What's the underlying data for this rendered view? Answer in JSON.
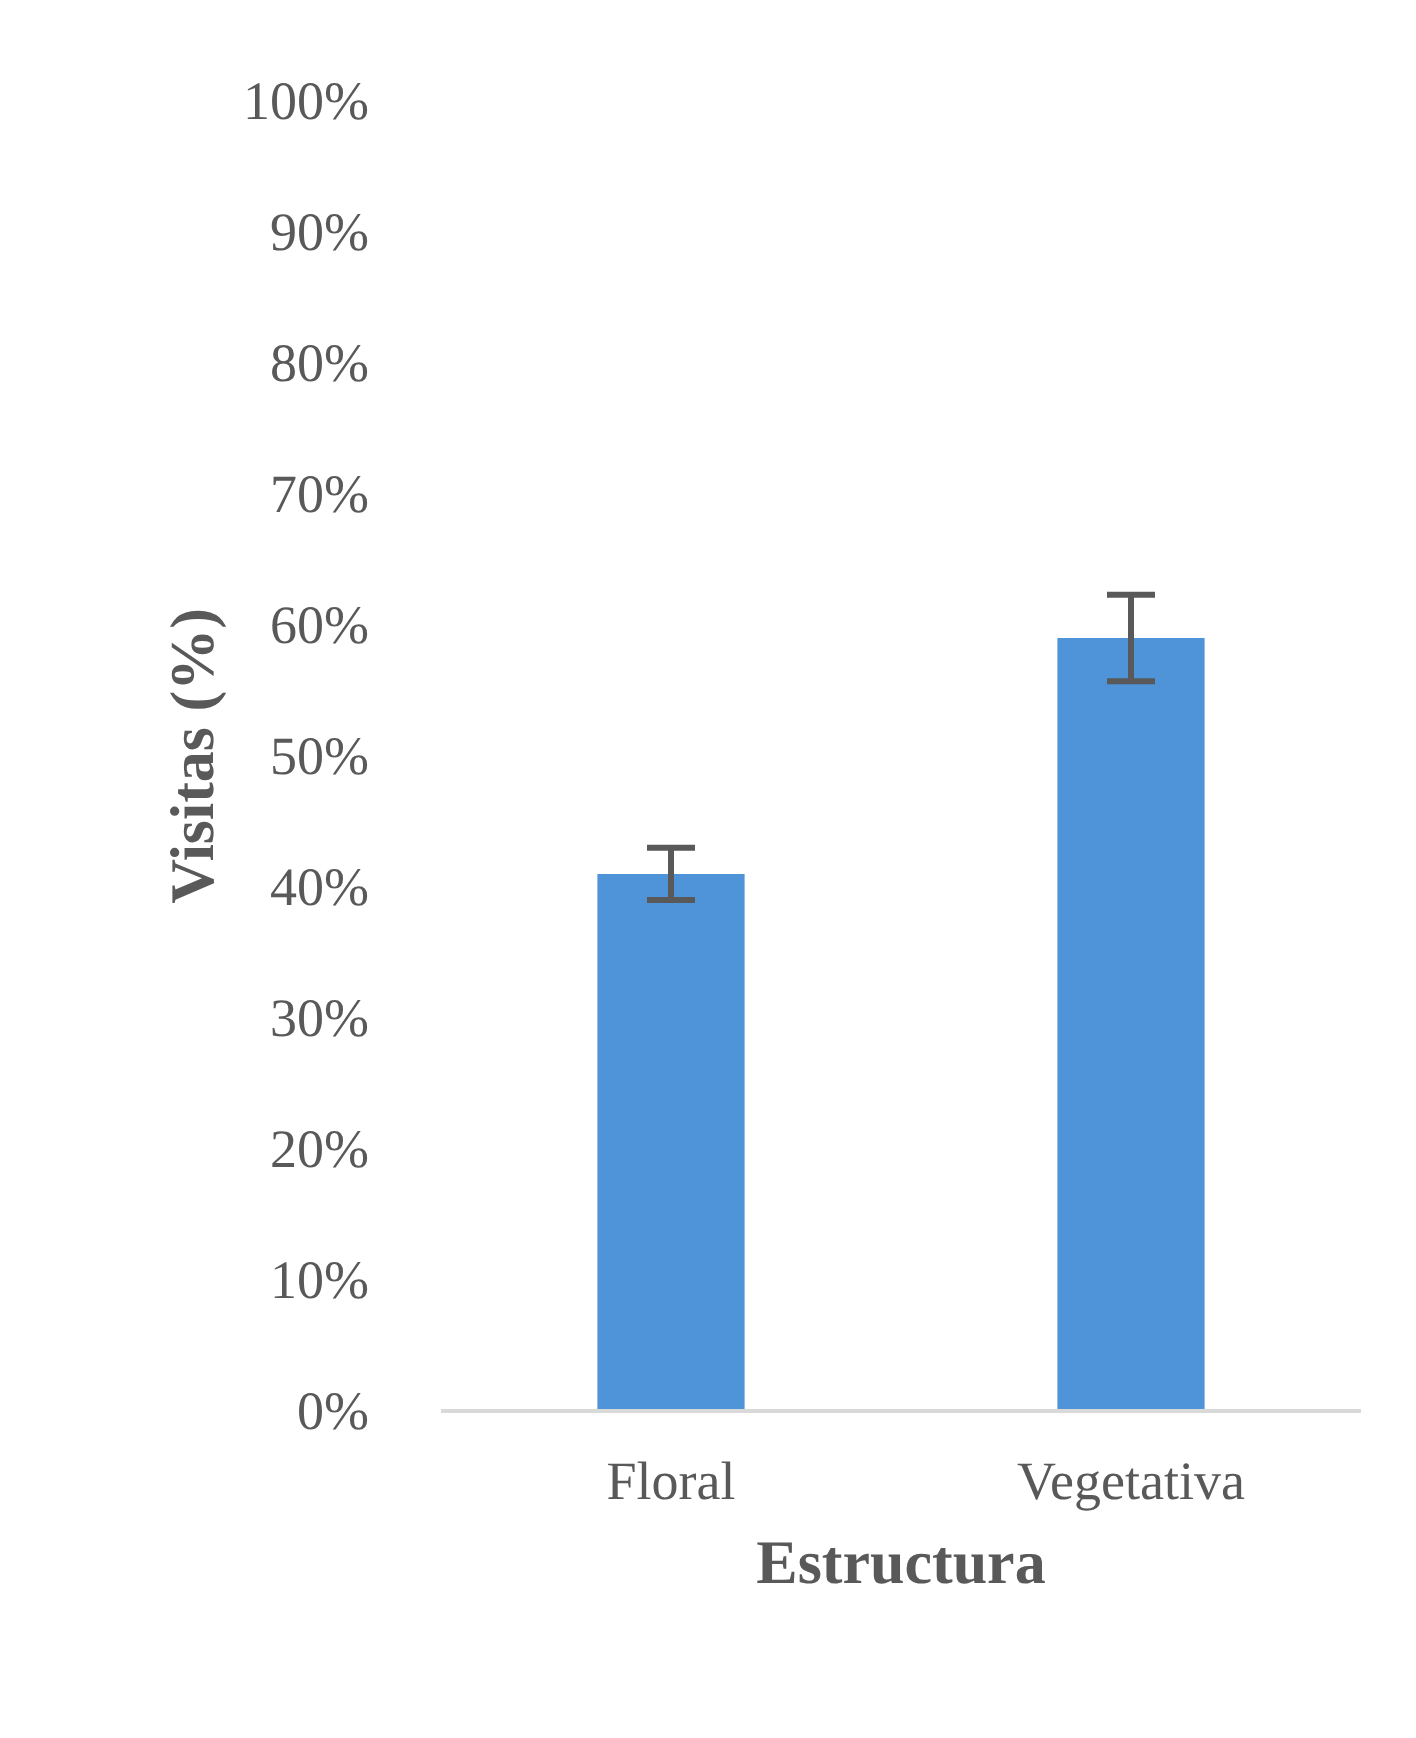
{
  "chart_data": {
    "type": "bar",
    "xlabel": "Estructura",
    "ylabel": "Visitas (%)",
    "categories": [
      "Floral",
      "Vegetativa"
    ],
    "values": [
      41,
      59
    ],
    "errors": [
      2,
      3.3
    ],
    "color": "#4f94d8",
    "ylim": [
      0,
      100
    ],
    "yticks": [
      {
        "value": 0,
        "label": "0%"
      },
      {
        "value": 10,
        "label": "10%"
      },
      {
        "value": 20,
        "label": "20%"
      },
      {
        "value": 30,
        "label": "30%"
      },
      {
        "value": 40,
        "label": "40%"
      },
      {
        "value": 50,
        "label": "50%"
      },
      {
        "value": 60,
        "label": "60%"
      },
      {
        "value": 70,
        "label": "70%"
      },
      {
        "value": 80,
        "label": "80%"
      },
      {
        "value": 90,
        "label": "90%"
      },
      {
        "value": 100,
        "label": "100%"
      }
    ],
    "grid": false
  }
}
